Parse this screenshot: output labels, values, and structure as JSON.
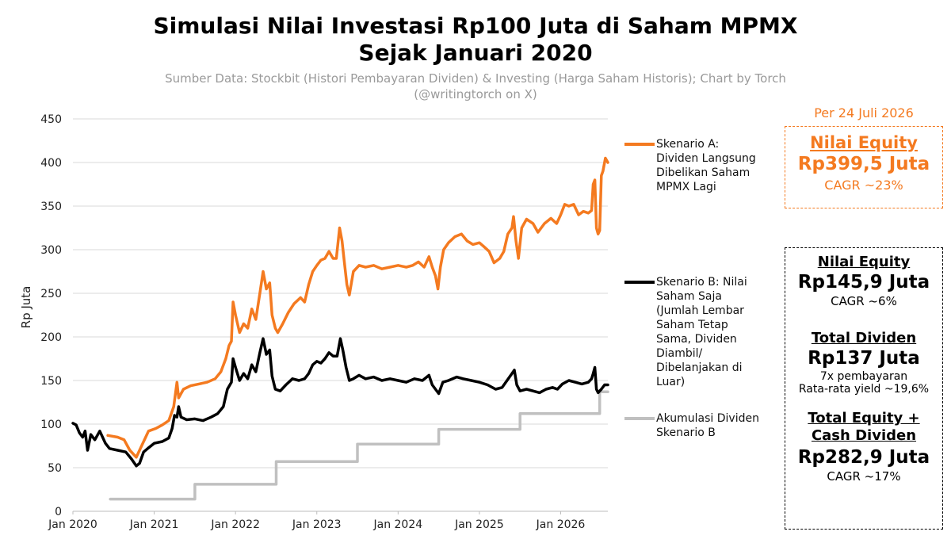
{
  "title_line1": "Simulasi Nilai Investasi Rp100 Juta di Saham MPMX",
  "title_line2": "Sejak Januari 2020",
  "subtitle_line1": "Sumber Data: Stockbit (Histori Pembayaran Dividen) & Investing (Harga Saham Historis); Chart by Torch",
  "subtitle_line2": "(@writingtorch on X)",
  "colors": {
    "orange": "#f47a20",
    "black": "#000000",
    "gray": "#c0c0c0"
  },
  "legend": {
    "a": [
      "Skenario A:",
      "Dividen Langsung",
      "Dibelikan Saham",
      "MPMX Lagi"
    ],
    "b": [
      "Skenario B: Nilai",
      "Saham Saja",
      "(Jumlah Lembar",
      "Saham Tetap",
      "Sama, Dividen",
      "Diambil/",
      "Dibelanjakan di",
      "Luar)"
    ],
    "c": [
      "Akumulasi Dividen",
      "Skenario B"
    ]
  },
  "panel_a": {
    "date": "Per 24 Juli 2026",
    "label": "Nilai Equity",
    "value": "Rp399,5 Juta",
    "cagr": "CAGR ~23%"
  },
  "panel_b": {
    "equity_label": "Nilai Equity",
    "equity_value": "Rp145,9 Juta",
    "equity_cagr": "CAGR ~6%",
    "div_label": "Total Dividen",
    "div_value": "Rp137 Juta",
    "div_note1": "7x pembayaran",
    "div_note2": "Rata-rata yield ~19,6%",
    "total_label1": "Total Equity +",
    "total_label2": "Cash Dividen",
    "total_value": "Rp282,9 Juta",
    "total_cagr": "CAGR ~17%"
  },
  "chart_data": {
    "type": "line",
    "ylabel": "Rp Juta",
    "xlabel": "",
    "ylim": [
      0,
      450
    ],
    "yticks": [
      0,
      50,
      100,
      150,
      200,
      250,
      300,
      350,
      400,
      450
    ],
    "xlim": [
      2020.0,
      2026.58
    ],
    "xticks": [
      {
        "x": 2020.0,
        "label": "Jan 2020"
      },
      {
        "x": 2021.0,
        "label": "Jan 2021"
      },
      {
        "x": 2022.0,
        "label": "Jan 2022"
      },
      {
        "x": 2023.0,
        "label": "Jan 2023"
      },
      {
        "x": 2024.0,
        "label": "Jan 2024"
      },
      {
        "x": 2025.0,
        "label": "Jan 2025"
      },
      {
        "x": 2026.0,
        "label": "Jan 2026"
      }
    ],
    "grid": "horizontal",
    "series": [
      {
        "name": "Skenario A: Dividen Langsung Dibelikan Saham MPMX Lagi",
        "color": "#f47a20",
        "points": [
          [
            2020.43,
            87
          ],
          [
            2020.55,
            85
          ],
          [
            2020.63,
            82
          ],
          [
            2020.7,
            70
          ],
          [
            2020.78,
            62
          ],
          [
            2020.88,
            82
          ],
          [
            2020.93,
            92
          ],
          [
            2021.02,
            95
          ],
          [
            2021.1,
            99
          ],
          [
            2021.18,
            104
          ],
          [
            2021.24,
            120
          ],
          [
            2021.28,
            148
          ],
          [
            2021.3,
            130
          ],
          [
            2021.36,
            140
          ],
          [
            2021.45,
            144
          ],
          [
            2021.55,
            146
          ],
          [
            2021.65,
            148
          ],
          [
            2021.75,
            152
          ],
          [
            2021.82,
            160
          ],
          [
            2021.88,
            175
          ],
          [
            2021.92,
            190
          ],
          [
            2021.95,
            195
          ],
          [
            2021.97,
            240
          ],
          [
            2022.0,
            225
          ],
          [
            2022.05,
            205
          ],
          [
            2022.1,
            215
          ],
          [
            2022.15,
            210
          ],
          [
            2022.2,
            232
          ],
          [
            2022.25,
            220
          ],
          [
            2022.3,
            250
          ],
          [
            2022.34,
            275
          ],
          [
            2022.38,
            255
          ],
          [
            2022.42,
            262
          ],
          [
            2022.45,
            225
          ],
          [
            2022.49,
            210
          ],
          [
            2022.52,
            205
          ],
          [
            2022.58,
            215
          ],
          [
            2022.65,
            228
          ],
          [
            2022.72,
            238
          ],
          [
            2022.8,
            245
          ],
          [
            2022.85,
            240
          ],
          [
            2022.9,
            260
          ],
          [
            2022.95,
            275
          ],
          [
            2023.0,
            282
          ],
          [
            2023.05,
            288
          ],
          [
            2023.1,
            290
          ],
          [
            2023.15,
            298
          ],
          [
            2023.2,
            290
          ],
          [
            2023.24,
            290
          ],
          [
            2023.28,
            325
          ],
          [
            2023.31,
            310
          ],
          [
            2023.34,
            285
          ],
          [
            2023.37,
            260
          ],
          [
            2023.4,
            248
          ],
          [
            2023.45,
            275
          ],
          [
            2023.52,
            282
          ],
          [
            2023.6,
            280
          ],
          [
            2023.7,
            282
          ],
          [
            2023.8,
            278
          ],
          [
            2023.9,
            280
          ],
          [
            2024.0,
            282
          ],
          [
            2024.1,
            280
          ],
          [
            2024.18,
            282
          ],
          [
            2024.25,
            286
          ],
          [
            2024.32,
            280
          ],
          [
            2024.38,
            292
          ],
          [
            2024.42,
            280
          ],
          [
            2024.46,
            270
          ],
          [
            2024.49,
            255
          ],
          [
            2024.52,
            280
          ],
          [
            2024.56,
            300
          ],
          [
            2024.62,
            308
          ],
          [
            2024.7,
            315
          ],
          [
            2024.78,
            318
          ],
          [
            2024.85,
            310
          ],
          [
            2024.92,
            306
          ],
          [
            2025.0,
            308
          ],
          [
            2025.05,
            304
          ],
          [
            2025.12,
            298
          ],
          [
            2025.18,
            285
          ],
          [
            2025.25,
            290
          ],
          [
            2025.3,
            298
          ],
          [
            2025.35,
            318
          ],
          [
            2025.4,
            325
          ],
          [
            2025.42,
            338
          ],
          [
            2025.45,
            310
          ],
          [
            2025.48,
            290
          ],
          [
            2025.52,
            325
          ],
          [
            2025.58,
            335
          ],
          [
            2025.66,
            330
          ],
          [
            2025.72,
            320
          ],
          [
            2025.8,
            330
          ],
          [
            2025.88,
            336
          ],
          [
            2025.95,
            330
          ],
          [
            2026.0,
            340
          ],
          [
            2026.05,
            352
          ],
          [
            2026.1,
            350
          ],
          [
            2026.16,
            352
          ],
          [
            2026.22,
            340
          ],
          [
            2026.28,
            344
          ],
          [
            2026.34,
            342
          ],
          [
            2026.38,
            345
          ],
          [
            2026.4,
            375
          ],
          [
            2026.42,
            380
          ],
          [
            2026.44,
            325
          ],
          [
            2026.46,
            318
          ],
          [
            2026.48,
            322
          ],
          [
            2026.5,
            385
          ],
          [
            2026.52,
            390
          ],
          [
            2026.55,
            405
          ],
          [
            2026.58,
            400
          ]
        ]
      },
      {
        "name": "Skenario B: Nilai Saham Saja (Jumlah Lembar Saham Tetap Sama, Dividen Diambil/ Dibelanjakan di Luar)",
        "color": "#000000",
        "points": [
          [
            2020.0,
            101
          ],
          [
            2020.04,
            99
          ],
          [
            2020.08,
            90
          ],
          [
            2020.12,
            85
          ],
          [
            2020.15,
            92
          ],
          [
            2020.18,
            70
          ],
          [
            2020.22,
            88
          ],
          [
            2020.27,
            82
          ],
          [
            2020.33,
            92
          ],
          [
            2020.4,
            78
          ],
          [
            2020.45,
            72
          ],
          [
            2020.55,
            70
          ],
          [
            2020.65,
            68
          ],
          [
            2020.72,
            60
          ],
          [
            2020.78,
            52
          ],
          [
            2020.82,
            55
          ],
          [
            2020.87,
            68
          ],
          [
            2020.92,
            72
          ],
          [
            2021.0,
            78
          ],
          [
            2021.1,
            80
          ],
          [
            2021.18,
            84
          ],
          [
            2021.22,
            95
          ],
          [
            2021.25,
            110
          ],
          [
            2021.28,
            108
          ],
          [
            2021.3,
            120
          ],
          [
            2021.33,
            108
          ],
          [
            2021.4,
            105
          ],
          [
            2021.5,
            106
          ],
          [
            2021.6,
            104
          ],
          [
            2021.7,
            108
          ],
          [
            2021.78,
            112
          ],
          [
            2021.85,
            120
          ],
          [
            2021.9,
            140
          ],
          [
            2021.95,
            148
          ],
          [
            2021.97,
            175
          ],
          [
            2022.0,
            165
          ],
          [
            2022.05,
            150
          ],
          [
            2022.1,
            158
          ],
          [
            2022.15,
            152
          ],
          [
            2022.2,
            168
          ],
          [
            2022.25,
            160
          ],
          [
            2022.3,
            182
          ],
          [
            2022.34,
            198
          ],
          [
            2022.38,
            180
          ],
          [
            2022.42,
            185
          ],
          [
            2022.45,
            155
          ],
          [
            2022.49,
            140
          ],
          [
            2022.55,
            138
          ],
          [
            2022.62,
            145
          ],
          [
            2022.7,
            152
          ],
          [
            2022.78,
            150
          ],
          [
            2022.85,
            152
          ],
          [
            2022.9,
            158
          ],
          [
            2022.95,
            168
          ],
          [
            2023.0,
            172
          ],
          [
            2023.05,
            170
          ],
          [
            2023.1,
            175
          ],
          [
            2023.15,
            182
          ],
          [
            2023.2,
            178
          ],
          [
            2023.25,
            178
          ],
          [
            2023.29,
            198
          ],
          [
            2023.32,
            185
          ],
          [
            2023.36,
            165
          ],
          [
            2023.4,
            150
          ],
          [
            2023.45,
            152
          ],
          [
            2023.52,
            156
          ],
          [
            2023.6,
            152
          ],
          [
            2023.7,
            154
          ],
          [
            2023.8,
            150
          ],
          [
            2023.9,
            152
          ],
          [
            2024.0,
            150
          ],
          [
            2024.1,
            148
          ],
          [
            2024.2,
            152
          ],
          [
            2024.3,
            150
          ],
          [
            2024.38,
            156
          ],
          [
            2024.42,
            145
          ],
          [
            2024.46,
            140
          ],
          [
            2024.5,
            135
          ],
          [
            2024.55,
            148
          ],
          [
            2024.62,
            150
          ],
          [
            2024.72,
            154
          ],
          [
            2024.8,
            152
          ],
          [
            2024.9,
            150
          ],
          [
            2025.0,
            148
          ],
          [
            2025.1,
            145
          ],
          [
            2025.2,
            140
          ],
          [
            2025.28,
            142
          ],
          [
            2025.34,
            150
          ],
          [
            2025.4,
            158
          ],
          [
            2025.43,
            162
          ],
          [
            2025.46,
            145
          ],
          [
            2025.5,
            138
          ],
          [
            2025.58,
            140
          ],
          [
            2025.66,
            138
          ],
          [
            2025.74,
            136
          ],
          [
            2025.82,
            140
          ],
          [
            2025.9,
            142
          ],
          [
            2025.96,
            140
          ],
          [
            2026.02,
            146
          ],
          [
            2026.1,
            150
          ],
          [
            2026.18,
            148
          ],
          [
            2026.26,
            146
          ],
          [
            2026.34,
            148
          ],
          [
            2026.38,
            152
          ],
          [
            2026.4,
            158
          ],
          [
            2026.42,
            165
          ],
          [
            2026.44,
            140
          ],
          [
            2026.46,
            136
          ],
          [
            2026.5,
            140
          ],
          [
            2026.54,
            145
          ],
          [
            2026.58,
            145
          ]
        ]
      },
      {
        "name": "Akumulasi Dividen Skenario B",
        "color": "#c0c0c0",
        "step": true,
        "points": [
          [
            2020.46,
            14
          ],
          [
            2021.5,
            14
          ],
          [
            2021.5,
            31
          ],
          [
            2022.5,
            31
          ],
          [
            2022.5,
            57
          ],
          [
            2023.5,
            57
          ],
          [
            2023.5,
            77
          ],
          [
            2024.5,
            77
          ],
          [
            2024.5,
            94
          ],
          [
            2025.5,
            94
          ],
          [
            2025.5,
            112
          ],
          [
            2026.48,
            112
          ],
          [
            2026.48,
            137
          ],
          [
            2026.58,
            137
          ]
        ]
      }
    ]
  }
}
